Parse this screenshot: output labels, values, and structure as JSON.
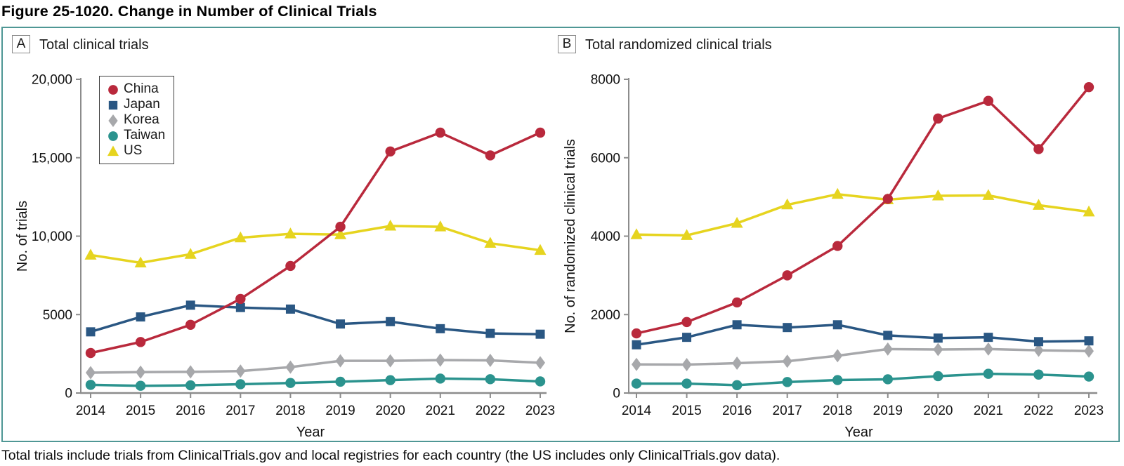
{
  "figure": {
    "title": "Figure 25-1020. Change in Number of Clinical Trials",
    "caption": "Total trials include trials from ClinicalTrials.gov and local registries for each country (the US includes only ClinicalTrials.gov data)."
  },
  "colors": {
    "china": "#b9293c",
    "japan": "#2a5783",
    "korea": "#a7a8ab",
    "taiwan": "#2b938e",
    "us": "#e6d41f",
    "frame": "#4f9795",
    "axis": "#8c8c8c",
    "text": "#121212"
  },
  "legend": {
    "items": [
      {
        "label": "China",
        "marker": "circle",
        "color_key": "china"
      },
      {
        "label": "Japan",
        "marker": "square",
        "color_key": "japan"
      },
      {
        "label": "Korea",
        "marker": "diamond",
        "color_key": "korea"
      },
      {
        "label": "Taiwan",
        "marker": "circle",
        "color_key": "taiwan"
      },
      {
        "label": "US",
        "marker": "triangle",
        "color_key": "us"
      }
    ]
  },
  "chart_data": [
    {
      "type": "line",
      "panel_label": "A",
      "title": "Total clinical trials",
      "xlabel": "Year",
      "ylabel": "No. of trials",
      "ylim": [
        0,
        20000
      ],
      "yticks": [
        0,
        5000,
        10000,
        15000,
        20000
      ],
      "ytick_labels": [
        "0",
        "5000",
        "10,000",
        "15,000",
        "20,000"
      ],
      "grid": false,
      "legend_position": "upper-left",
      "categories": [
        2014,
        2015,
        2016,
        2017,
        2018,
        2019,
        2020,
        2021,
        2022,
        2023
      ],
      "series": [
        {
          "name": "China",
          "marker": "circle",
          "color_key": "china",
          "values": [
            2550,
            3250,
            4350,
            6000,
            8100,
            10600,
            15400,
            16600,
            15150,
            16600
          ]
        },
        {
          "name": "Japan",
          "marker": "square",
          "color_key": "japan",
          "values": [
            3900,
            4850,
            5600,
            5450,
            5350,
            4400,
            4550,
            4100,
            3800,
            3750
          ]
        },
        {
          "name": "Korea",
          "marker": "diamond",
          "color_key": "korea",
          "values": [
            1300,
            1330,
            1350,
            1400,
            1650,
            2050,
            2050,
            2100,
            2080,
            1930
          ]
        },
        {
          "name": "Taiwan",
          "marker": "circle",
          "color_key": "taiwan",
          "values": [
            520,
            460,
            490,
            560,
            640,
            720,
            820,
            920,
            880,
            740
          ]
        },
        {
          "name": "US",
          "marker": "triangle",
          "color_key": "us",
          "values": [
            8800,
            8300,
            8850,
            9900,
            10150,
            10100,
            10650,
            10600,
            9550,
            9100
          ]
        }
      ]
    },
    {
      "type": "line",
      "panel_label": "B",
      "title": "Total randomized clinical trials",
      "xlabel": "Year",
      "ylabel": "No. of randomized clinical trials",
      "ylim": [
        0,
        8000
      ],
      "yticks": [
        0,
        2000,
        4000,
        6000,
        8000
      ],
      "ytick_labels": [
        "0",
        "2000",
        "4000",
        "6000",
        "8000"
      ],
      "grid": false,
      "legend_position": "none",
      "categories": [
        2014,
        2015,
        2016,
        2017,
        2018,
        2019,
        2020,
        2021,
        2022,
        2023
      ],
      "series": [
        {
          "name": "China",
          "marker": "circle",
          "color_key": "china",
          "values": [
            1520,
            1810,
            2310,
            3000,
            3750,
            4950,
            7000,
            7450,
            6220,
            7800
          ]
        },
        {
          "name": "Japan",
          "marker": "square",
          "color_key": "japan",
          "values": [
            1230,
            1420,
            1740,
            1670,
            1740,
            1470,
            1400,
            1420,
            1310,
            1330
          ]
        },
        {
          "name": "Korea",
          "marker": "diamond",
          "color_key": "korea",
          "values": [
            730,
            725,
            760,
            810,
            950,
            1120,
            1110,
            1120,
            1090,
            1070
          ]
        },
        {
          "name": "Taiwan",
          "marker": "circle",
          "color_key": "taiwan",
          "values": [
            240,
            240,
            200,
            280,
            330,
            350,
            430,
            490,
            470,
            420
          ]
        },
        {
          "name": "US",
          "marker": "triangle",
          "color_key": "us",
          "values": [
            4040,
            4020,
            4330,
            4800,
            5070,
            4930,
            5030,
            5040,
            4790,
            4620
          ]
        }
      ]
    }
  ]
}
